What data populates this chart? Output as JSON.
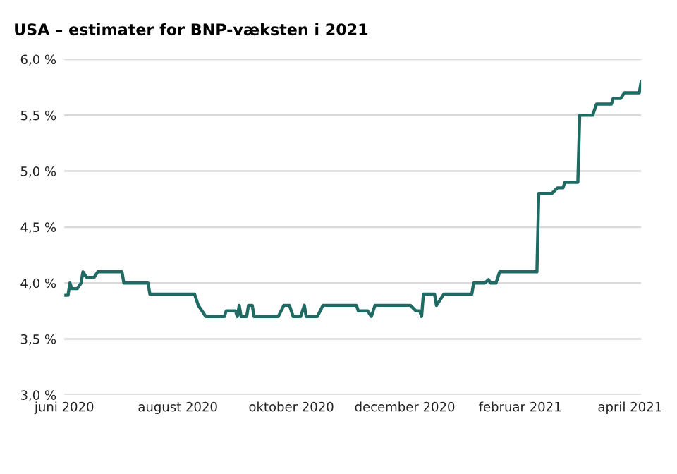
{
  "chart_data": {
    "type": "line",
    "title": "USA – estimater for BNP-væksten i 2021",
    "x": [
      "2020-06-01",
      "2020-06-03",
      "2020-06-04",
      "2020-06-05",
      "2020-06-08",
      "2020-06-10",
      "2020-06-11",
      "2020-06-13",
      "2020-06-17",
      "2020-06-19",
      "2020-07-02",
      "2020-07-03",
      "2020-07-16",
      "2020-07-17",
      "2020-08-10",
      "2020-08-12",
      "2020-08-14",
      "2020-08-16",
      "2020-08-26",
      "2020-08-27",
      "2020-09-01",
      "2020-09-02",
      "2020-09-03",
      "2020-09-04",
      "2020-09-07",
      "2020-09-08",
      "2020-09-10",
      "2020-09-11",
      "2020-09-24",
      "2020-09-27",
      "2020-09-30",
      "2020-10-02",
      "2020-10-06",
      "2020-10-08",
      "2020-10-09",
      "2020-10-15",
      "2020-10-18",
      "2020-11-05",
      "2020-11-06",
      "2020-11-11",
      "2020-11-13",
      "2020-11-15",
      "2020-12-04",
      "2020-12-07",
      "2020-12-09",
      "2020-12-10",
      "2020-12-11",
      "2020-12-17",
      "2020-12-18",
      "2020-12-20",
      "2020-12-22",
      "2021-01-06",
      "2021-01-07",
      "2021-01-13",
      "2021-01-15",
      "2021-01-16",
      "2021-01-19",
      "2021-01-21",
      "2021-02-10",
      "2021-02-11",
      "2021-02-18",
      "2021-02-21",
      "2021-02-24",
      "2021-02-25",
      "2021-03-04",
      "2021-03-05",
      "2021-03-12",
      "2021-03-14",
      "2021-03-22",
      "2021-03-23",
      "2021-03-27",
      "2021-03-29",
      "2021-04-06",
      "2021-04-07"
    ],
    "series": [
      {
        "color": "#1f6b63",
        "values": [
          3.89,
          3.89,
          4.0,
          3.95,
          3.95,
          4.0,
          4.1,
          4.05,
          4.05,
          4.1,
          4.1,
          4.0,
          4.0,
          3.9,
          3.9,
          3.8,
          3.75,
          3.7,
          3.7,
          3.75,
          3.75,
          3.7,
          3.8,
          3.7,
          3.7,
          3.8,
          3.8,
          3.7,
          3.7,
          3.8,
          3.8,
          3.7,
          3.7,
          3.8,
          3.7,
          3.7,
          3.8,
          3.8,
          3.75,
          3.75,
          3.7,
          3.8,
          3.8,
          3.75,
          3.75,
          3.7,
          3.9,
          3.9,
          3.8,
          3.85,
          3.9,
          3.9,
          4.0,
          4.0,
          4.03,
          4.0,
          4.0,
          4.1,
          4.1,
          4.8,
          4.8,
          4.85,
          4.85,
          4.9,
          4.9,
          5.5,
          5.5,
          5.6,
          5.6,
          5.65,
          5.65,
          5.7,
          5.7,
          5.8
        ]
      }
    ],
    "xlim": [
      "2020-06-01",
      "2021-04-07"
    ],
    "xticks": [
      {
        "value": "2020-06-01",
        "label": "juni 2020"
      },
      {
        "value": "2020-08-01",
        "label": "august 2020"
      },
      {
        "value": "2020-10-01",
        "label": "oktober 2020"
      },
      {
        "value": "2020-12-01",
        "label": "december 2020"
      },
      {
        "value": "2021-02-01",
        "label": "februar 2021"
      },
      {
        "value": "2021-04-01",
        "label": "april 2021"
      }
    ],
    "ylim": [
      3.0,
      6.0
    ],
    "yticks": [
      {
        "value": 3.0,
        "label": "3,0 %"
      },
      {
        "value": 3.5,
        "label": "3,5 %"
      },
      {
        "value": 4.0,
        "label": "4,0 %"
      },
      {
        "value": 4.5,
        "label": "4,5 %"
      },
      {
        "value": 5.0,
        "label": "5,0 %"
      },
      {
        "value": 5.5,
        "label": "5,5 %"
      },
      {
        "value": 6.0,
        "label": "6,0 %"
      }
    ],
    "grid": "y"
  }
}
